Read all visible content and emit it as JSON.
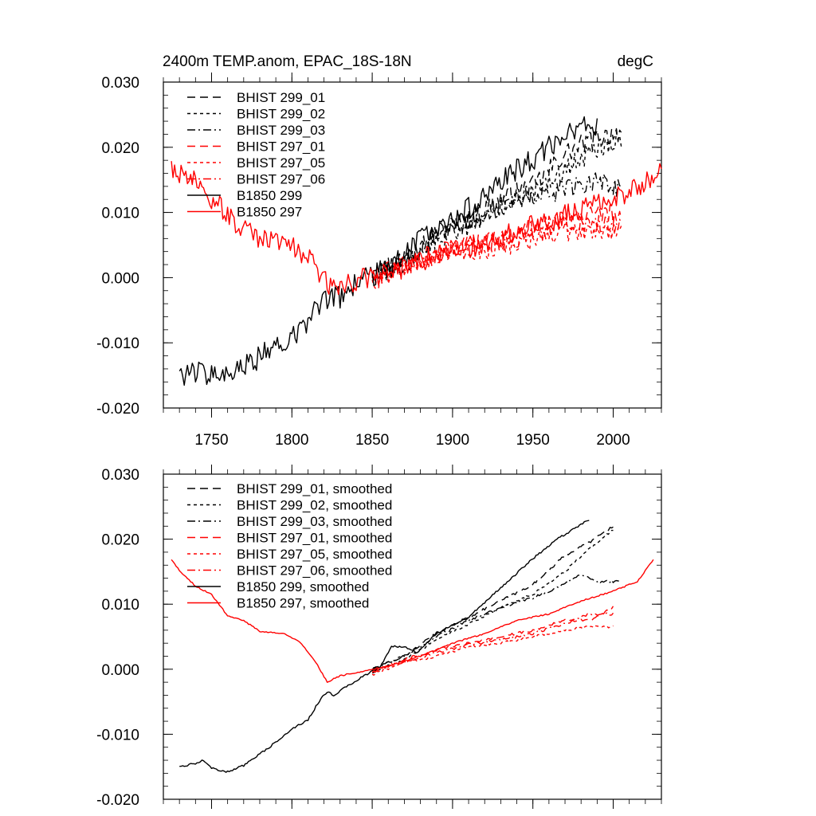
{
  "figure": {
    "title_left": "2400m TEMP.anom, EPAC_18S-18N",
    "title_right": "degC"
  },
  "colors": {
    "black": "#000000",
    "red": "#ff0000"
  },
  "chart_data": [
    {
      "type": "line",
      "name": "raw",
      "title": "2400m TEMP.anom, EPAC_18S-18N",
      "units": "degC",
      "xlabel": "",
      "ylabel": "",
      "xlim": [
        1720,
        2030
      ],
      "ylim": [
        -0.02,
        0.03
      ],
      "x_ticks": [
        1750,
        1800,
        1850,
        1900,
        1950,
        2000
      ],
      "x_tick_labels": [
        "1750",
        "1800",
        "1850",
        "1900",
        "1950",
        "2000"
      ],
      "y_ticks": [
        -0.02,
        -0.01,
        0.0,
        0.01,
        0.02,
        0.03
      ],
      "y_tick_labels": [
        "-0.020",
        "-0.010",
        "0.000",
        "0.010",
        "0.020",
        "0.030"
      ],
      "legend": {
        "position": "top-left"
      },
      "series": [
        {
          "name": "BHIST 299_01",
          "color": "#000000",
          "dash": "long",
          "x_range": [
            1850,
            2005
          ],
          "anchors": [
            [
              1850,
              0.001
            ],
            [
              1870,
              0.003
            ],
            [
              1890,
              0.007
            ],
            [
              1910,
              0.009
            ],
            [
              1930,
              0.012
            ],
            [
              1950,
              0.014
            ],
            [
              1970,
              0.019
            ],
            [
              1985,
              0.021
            ],
            [
              2005,
              0.0225
            ]
          ],
          "noise": 0.0016
        },
        {
          "name": "BHIST 299_02",
          "color": "#000000",
          "dash": "short",
          "x_range": [
            1850,
            2005
          ],
          "anchors": [
            [
              1850,
              0.0
            ],
            [
              1870,
              0.002
            ],
            [
              1890,
              0.006
            ],
            [
              1910,
              0.008
            ],
            [
              1930,
              0.011
            ],
            [
              1950,
              0.013
            ],
            [
              1970,
              0.0165
            ],
            [
              1985,
              0.019
            ],
            [
              2005,
              0.0215
            ]
          ],
          "noise": 0.0016
        },
        {
          "name": "BHIST 299_03",
          "color": "#000000",
          "dash": "dashdot",
          "x_range": [
            1850,
            2005
          ],
          "anchors": [
            [
              1850,
              0.0005
            ],
            [
              1870,
              0.0025
            ],
            [
              1890,
              0.006
            ],
            [
              1910,
              0.0085
            ],
            [
              1930,
              0.0105
            ],
            [
              1950,
              0.012
            ],
            [
              1970,
              0.0135
            ],
            [
              1990,
              0.015
            ],
            [
              2005,
              0.0135
            ]
          ],
          "noise": 0.0015
        },
        {
          "name": "BHIST 297_01",
          "color": "#ff0000",
          "dash": "long",
          "x_range": [
            1850,
            2005
          ],
          "anchors": [
            [
              1850,
              0.0
            ],
            [
              1870,
              0.002
            ],
            [
              1890,
              0.004
            ],
            [
              1910,
              0.005
            ],
            [
              1930,
              0.006
            ],
            [
              1950,
              0.0075
            ],
            [
              1970,
              0.009
            ],
            [
              1990,
              0.01
            ],
            [
              2005,
              0.0095
            ]
          ],
          "noise": 0.0015
        },
        {
          "name": "BHIST 297_05",
          "color": "#ff0000",
          "dash": "short",
          "x_range": [
            1850,
            2005
          ],
          "anchors": [
            [
              1850,
              -0.0005
            ],
            [
              1870,
              0.0015
            ],
            [
              1890,
              0.003
            ],
            [
              1910,
              0.004
            ],
            [
              1930,
              0.0045
            ],
            [
              1950,
              0.0055
            ],
            [
              1970,
              0.007
            ],
            [
              1990,
              0.0075
            ],
            [
              2005,
              0.0065
            ]
          ],
          "noise": 0.0015
        },
        {
          "name": "BHIST 297_06",
          "color": "#ff0000",
          "dash": "dashdot",
          "x_range": [
            1850,
            2005
          ],
          "anchors": [
            [
              1850,
              0.0
            ],
            [
              1870,
              0.0015
            ],
            [
              1890,
              0.0035
            ],
            [
              1910,
              0.0045
            ],
            [
              1930,
              0.0055
            ],
            [
              1950,
              0.0065
            ],
            [
              1970,
              0.0085
            ],
            [
              1990,
              0.0085
            ],
            [
              2005,
              0.008
            ]
          ],
          "noise": 0.0015
        },
        {
          "name": "B1850 299",
          "color": "#000000",
          "dash": "solid",
          "x_range": [
            1730,
            1990
          ],
          "anchors": [
            [
              1730,
              -0.015
            ],
            [
              1745,
              -0.0145
            ],
            [
              1760,
              -0.0155
            ],
            [
              1775,
              -0.013
            ],
            [
              1790,
              -0.0105
            ],
            [
              1805,
              -0.008
            ],
            [
              1815,
              -0.005
            ],
            [
              1822,
              -0.003
            ],
            [
              1830,
              -0.003
            ],
            [
              1840,
              -0.001
            ],
            [
              1860,
              0.0015
            ],
            [
              1880,
              0.006
            ],
            [
              1900,
              0.009
            ],
            [
              1920,
              0.0125
            ],
            [
              1940,
              0.0165
            ],
            [
              1960,
              0.02
            ],
            [
              1975,
              0.0225
            ],
            [
              1990,
              0.0235
            ]
          ],
          "noise": 0.0018
        },
        {
          "name": "B1850 297",
          "color": "#ff0000",
          "dash": "solid",
          "x_range": [
            1725,
            2030
          ],
          "anchors": [
            [
              1725,
              0.017
            ],
            [
              1735,
              0.0155
            ],
            [
              1745,
              0.0135
            ],
            [
              1760,
              0.0095
            ],
            [
              1775,
              0.0065
            ],
            [
              1795,
              0.0055
            ],
            [
              1810,
              0.003
            ],
            [
              1825,
              -0.002
            ],
            [
              1840,
              -0.0005
            ],
            [
              1860,
              0.0005
            ],
            [
              1880,
              0.0025
            ],
            [
              1900,
              0.004
            ],
            [
              1920,
              0.005
            ],
            [
              1940,
              0.0075
            ],
            [
              1960,
              0.0085
            ],
            [
              1980,
              0.0105
            ],
            [
              2000,
              0.0125
            ],
            [
              2015,
              0.0135
            ],
            [
              2030,
              0.0168
            ]
          ],
          "noise": 0.0017
        }
      ]
    },
    {
      "type": "line",
      "name": "smoothed",
      "title": "",
      "xlabel": "",
      "ylabel": "",
      "xlim": [
        1720,
        2030
      ],
      "ylim": [
        -0.02,
        0.03
      ],
      "x_ticks": [
        1750,
        1800,
        1850,
        1900,
        1950,
        2000
      ],
      "x_tick_labels": [],
      "y_ticks": [
        -0.02,
        -0.01,
        0.0,
        0.01,
        0.02,
        0.03
      ],
      "y_tick_labels": [
        "-0.020",
        "-0.010",
        "0.000",
        "0.010",
        "0.020",
        "0.030"
      ],
      "legend": {
        "position": "top-left"
      },
      "series": [
        {
          "name": "BHIST 299_01, smoothed",
          "color": "#000000",
          "dash": "long",
          "x_range": [
            1850,
            2000
          ],
          "anchors": [
            [
              1850,
              0.0
            ],
            [
              1870,
              0.002
            ],
            [
              1890,
              0.0055
            ],
            [
              1910,
              0.008
            ],
            [
              1930,
              0.0105
            ],
            [
              1950,
              0.013
            ],
            [
              1970,
              0.0175
            ],
            [
              1985,
              0.0195
            ],
            [
              2000,
              0.022
            ]
          ],
          "noise": 0.0002
        },
        {
          "name": "BHIST 299_02, smoothed",
          "color": "#000000",
          "dash": "short",
          "x_range": [
            1850,
            2000
          ],
          "anchors": [
            [
              1850,
              -0.0005
            ],
            [
              1870,
              0.0015
            ],
            [
              1890,
              0.0045
            ],
            [
              1910,
              0.007
            ],
            [
              1930,
              0.0095
            ],
            [
              1950,
              0.0115
            ],
            [
              1970,
              0.015
            ],
            [
              1985,
              0.0185
            ],
            [
              2000,
              0.0215
            ]
          ],
          "noise": 0.0002
        },
        {
          "name": "BHIST 299_03, smoothed",
          "color": "#000000",
          "dash": "dashdot",
          "x_range": [
            1850,
            2005
          ],
          "anchors": [
            [
              1850,
              0.0
            ],
            [
              1870,
              0.002
            ],
            [
              1890,
              0.005
            ],
            [
              1910,
              0.0075
            ],
            [
              1930,
              0.0095
            ],
            [
              1950,
              0.011
            ],
            [
              1965,
              0.0125
            ],
            [
              1980,
              0.0145
            ],
            [
              1990,
              0.0135
            ],
            [
              2005,
              0.0135
            ]
          ],
          "noise": 0.0002
        },
        {
          "name": "BHIST 297_01, smoothed",
          "color": "#ff0000",
          "dash": "long",
          "x_range": [
            1850,
            2000
          ],
          "anchors": [
            [
              1850,
              -0.0005
            ],
            [
              1870,
              0.0015
            ],
            [
              1890,
              0.003
            ],
            [
              1910,
              0.004
            ],
            [
              1930,
              0.005
            ],
            [
              1950,
              0.006
            ],
            [
              1970,
              0.0075
            ],
            [
              1985,
              0.0075
            ],
            [
              2000,
              0.0095
            ]
          ],
          "noise": 0.0002
        },
        {
          "name": "BHIST 297_05, smoothed",
          "color": "#ff0000",
          "dash": "short",
          "x_range": [
            1850,
            2000
          ],
          "anchors": [
            [
              1850,
              -0.0008
            ],
            [
              1870,
              0.001
            ],
            [
              1890,
              0.002
            ],
            [
              1910,
              0.0035
            ],
            [
              1930,
              0.004
            ],
            [
              1950,
              0.005
            ],
            [
              1970,
              0.006
            ],
            [
              1985,
              0.0065
            ],
            [
              2000,
              0.0065
            ]
          ],
          "noise": 0.0002
        },
        {
          "name": "BHIST 297_06, smoothed",
          "color": "#ff0000",
          "dash": "dashdot",
          "x_range": [
            1850,
            2000
          ],
          "anchors": [
            [
              1850,
              -0.0003
            ],
            [
              1870,
              0.0012
            ],
            [
              1890,
              0.0025
            ],
            [
              1910,
              0.0038
            ],
            [
              1930,
              0.0045
            ],
            [
              1950,
              0.0055
            ],
            [
              1970,
              0.007
            ],
            [
              1985,
              0.0085
            ],
            [
              2000,
              0.0085
            ]
          ],
          "noise": 0.0002
        },
        {
          "name": "B1850 299, smoothed",
          "color": "#000000",
          "dash": "solid",
          "x_range": [
            1730,
            1985
          ],
          "anchors": [
            [
              1730,
              -0.015
            ],
            [
              1740,
              -0.0145
            ],
            [
              1745,
              -0.014
            ],
            [
              1750,
              -0.0152
            ],
            [
              1760,
              -0.0158
            ],
            [
              1770,
              -0.0148
            ],
            [
              1785,
              -0.0122
            ],
            [
              1800,
              -0.0092
            ],
            [
              1810,
              -0.0078
            ],
            [
              1818,
              -0.0045
            ],
            [
              1822,
              -0.0035
            ],
            [
              1826,
              -0.004
            ],
            [
              1835,
              -0.0025
            ],
            [
              1845,
              -0.001
            ],
            [
              1855,
              0.0003
            ],
            [
              1862,
              0.0035
            ],
            [
              1870,
              0.0035
            ],
            [
              1878,
              0.0025
            ],
            [
              1890,
              0.0055
            ],
            [
              1910,
              0.008
            ],
            [
              1930,
              0.0125
            ],
            [
              1950,
              0.017
            ],
            [
              1965,
              0.02
            ],
            [
              1985,
              0.023
            ]
          ],
          "noise": 0.00015
        },
        {
          "name": "B1850 297, smoothed",
          "color": "#ff0000",
          "dash": "solid",
          "x_range": [
            1725,
            2025
          ],
          "anchors": [
            [
              1725,
              0.0168
            ],
            [
              1730,
              0.0152
            ],
            [
              1740,
              0.0128
            ],
            [
              1750,
              0.0115
            ],
            [
              1760,
              0.0082
            ],
            [
              1770,
              0.0075
            ],
            [
              1780,
              0.0058
            ],
            [
              1795,
              0.0055
            ],
            [
              1805,
              0.0042
            ],
            [
              1815,
              0.001
            ],
            [
              1822,
              -0.002
            ],
            [
              1830,
              -0.001
            ],
            [
              1840,
              -0.0005
            ],
            [
              1860,
              0.0005
            ],
            [
              1880,
              0.002
            ],
            [
              1900,
              0.004
            ],
            [
              1920,
              0.0055
            ],
            [
              1940,
              0.0075
            ],
            [
              1960,
              0.0085
            ],
            [
              1980,
              0.0105
            ],
            [
              2000,
              0.012
            ],
            [
              2015,
              0.0135
            ],
            [
              2025,
              0.0168
            ]
          ],
          "noise": 0.0001
        }
      ]
    }
  ]
}
